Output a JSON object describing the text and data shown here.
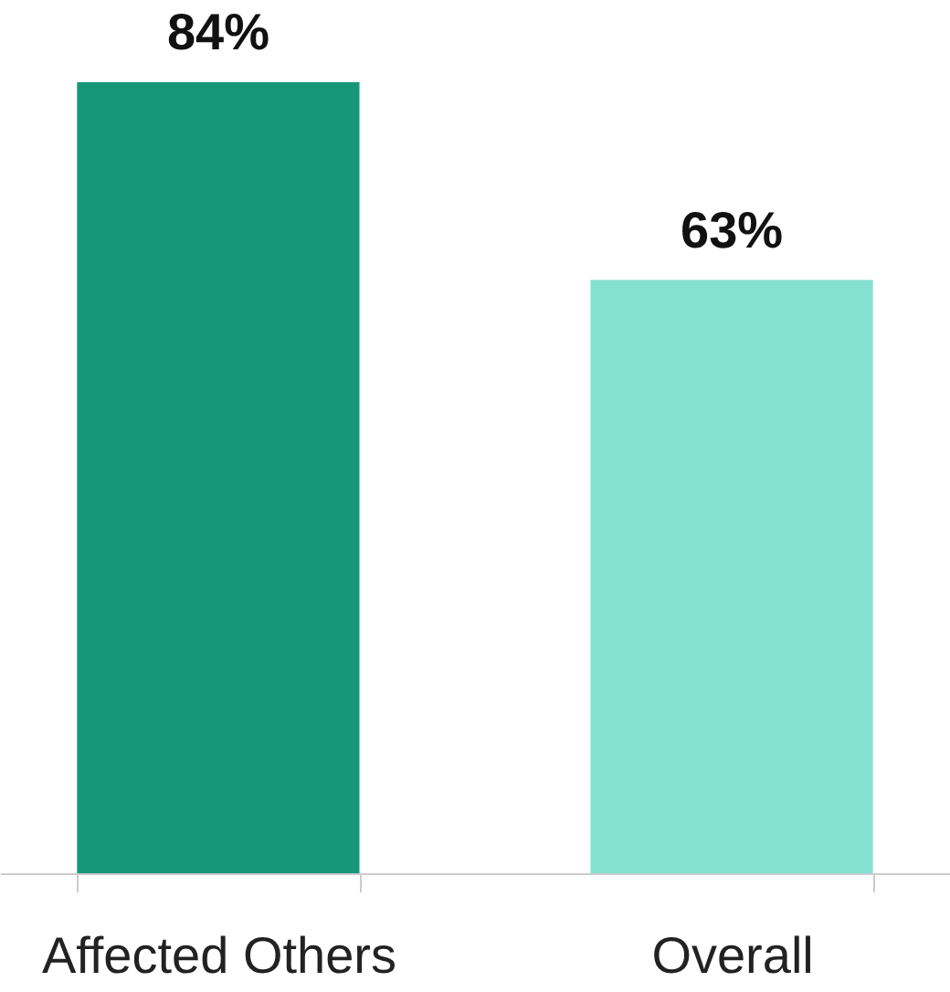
{
  "chart_data": {
    "type": "bar",
    "categories": [
      "Affected Others",
      "Overall"
    ],
    "values": [
      84,
      63
    ],
    "colors": [
      "#17967a",
      "#84e1cf"
    ],
    "value_labels": [
      "84%",
      "63%"
    ]
  }
}
